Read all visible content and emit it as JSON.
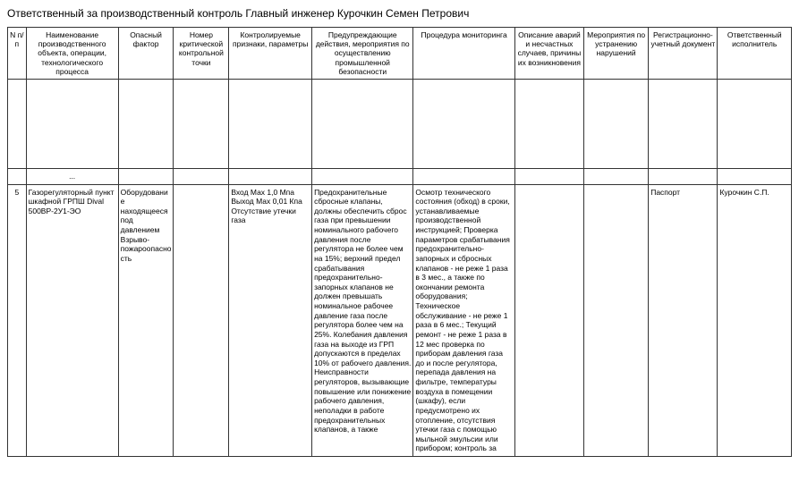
{
  "title": "Ответственный за производственный контроль Главный инженер Курочкин Семен Петрович",
  "headers": {
    "n": "N п/п",
    "name": "Наименование производственного объекта, операции, технологического процесса",
    "factor": "Опасный фактор",
    "num": "Номер критической контрольной точки",
    "param": "Контролируемые признаки, параметры",
    "prev": "Предупреждающие действия, мероприятия по осуществлению промышленной безопасности",
    "monitor": "Процедура мониторинга",
    "accident": "Описание аварий и несчастных случаев, причины их возникновения",
    "action": "Мероприятия по устранению нарушений",
    "reg": "Регистрационно-учетный документ",
    "resp": "Ответственный исполнитель"
  },
  "ellipsis": "...",
  "row": {
    "n": "5",
    "name": "Газорегуляторный пункт шкафной ГРПШ Dival 500ВР-2У1-ЭО",
    "factor": "Оборудование находящееся под давлением Взрыво-пожароопасность",
    "num": "",
    "param": "Вход Мах 1,0 Мпа Выход Мах 0,01 Кпа Отсутствие утечки газа",
    "prev": "Предохранительные сбросные клапаны, должны обеспечить сброс газа при превышении номинального рабочего давления после регулятора не более чем на 15%; верхний предел срабатывания предохранительно-запорных клапанов не должен превышать номинальное рабочее давление газа после регулятора более чем на 25%. Колебания давления газа на выходе из ГРП допускаются в пределах 10% от рабочего давления. Неисправности регуляторов, вызывающие повышение или понижение рабочего давления, неполадки в работе предохранительных клапанов, а также",
    "monitor": "Осмотр технического состояния (обход) в сроки, устанавливаемые производственной инструкцией; Проверка параметров срабатывания предохранительно-запорных и сбросных клапанов - не реже 1 раза в 3 мес., а также по окончании ремонта оборудования; Техническое обслуживание - не реже 1 раза в 6 мес.; Текущий ремонт - не реже 1 раза в 12 мес проверка по приборам давления газа до и после регулятора, перепада давления на фильтре, температуры воздуха в помещении (шкафу), если предусмотрено их отопление, отсутствия утечки газа с помощью мыльной эмульсии или прибором; контроль за",
    "accident": "",
    "action": "",
    "reg": "Паспорт",
    "resp": "Курочкин С.П."
  }
}
